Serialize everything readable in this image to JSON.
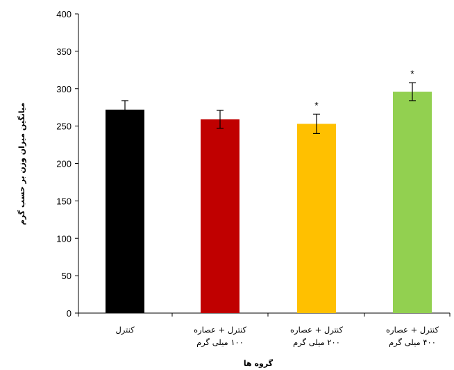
{
  "chart_data": {
    "type": "bar",
    "title": "",
    "xlabel": "گروه ها",
    "ylabel": "میانگین میزان وزن بر حسب گرم",
    "ylim": [
      0,
      400
    ],
    "yticks": [
      "0",
      "50",
      "100",
      "150",
      "200",
      "250",
      "300",
      "350",
      "400"
    ],
    "grid": false,
    "legend": "none",
    "categories": [
      [
        "کنترل"
      ],
      [
        "کنترل + عصاره",
        "۱۰۰ میلی گرم"
      ],
      [
        "کنترل + عصاره",
        "۲۰۰ میلی گرم"
      ],
      [
        "کنترل + عصاره",
        "۴۰۰ میلی گرم"
      ]
    ],
    "values": [
      272,
      259,
      253,
      296
    ],
    "errors": [
      12,
      12,
      13,
      12
    ],
    "significance": [
      "",
      "",
      "*",
      "*"
    ],
    "colors": [
      "#000000",
      "#c00000",
      "#ffc000",
      "#92d050"
    ]
  }
}
